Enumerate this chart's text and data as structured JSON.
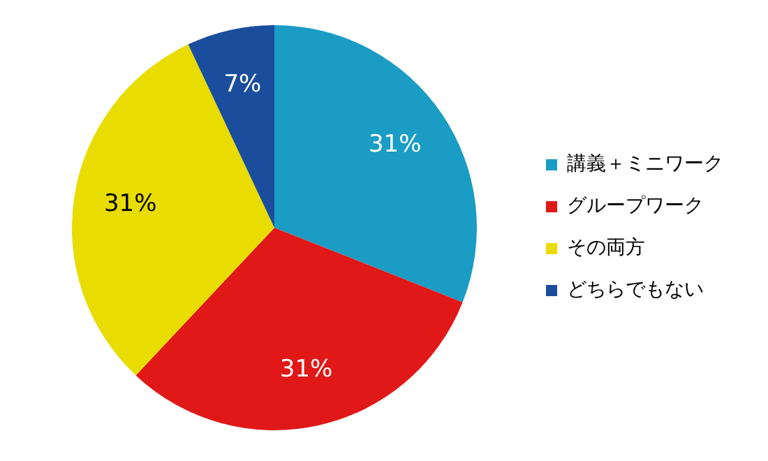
{
  "chart_data": {
    "type": "pie",
    "categories": [
      "講義＋ミニワーク",
      "グループワーク",
      "その両方",
      "どちらでもない"
    ],
    "values": [
      31,
      31,
      31,
      7
    ],
    "colors": [
      "#1a9cc4",
      "#e01818",
      "#e8dc00",
      "#1a4e9c"
    ],
    "value_labels": [
      "31%",
      "31%",
      "31%",
      "7%"
    ],
    "legend": "right"
  }
}
